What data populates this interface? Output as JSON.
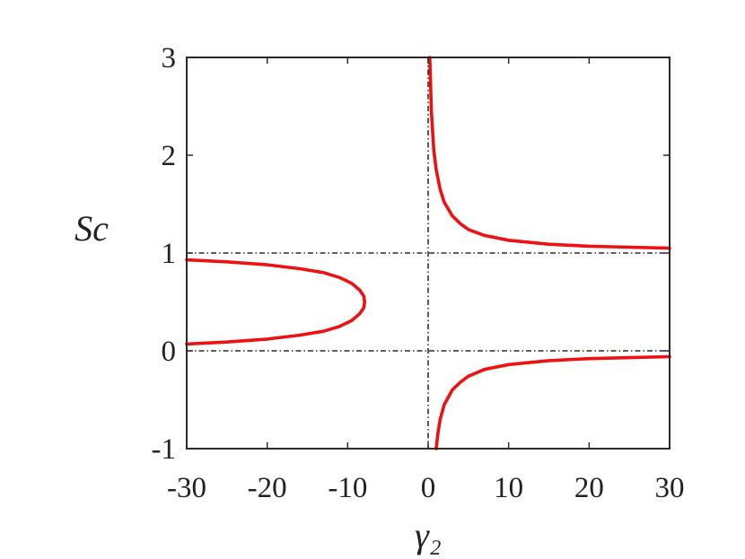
{
  "chart_data": {
    "type": "line",
    "xlabel": "γ₂",
    "ylabel": "Sc",
    "xlim": [
      -30,
      30
    ],
    "ylim": [
      -1,
      3
    ],
    "xticks": [
      -30,
      -20,
      -10,
      0,
      10,
      20,
      30
    ],
    "yticks": [
      -1,
      0,
      1,
      2,
      3
    ],
    "grid": false,
    "legend": "none",
    "reference_lines": {
      "horizontal": [
        0,
        1
      ],
      "vertical": [
        0
      ],
      "color": "#000000",
      "style": "dash-dot"
    },
    "curve_color": "#ee1111",
    "series": [
      {
        "values": [
          {
            "x": -30,
            "y": 0.07
          },
          {
            "x": -25,
            "y": 0.09
          },
          {
            "x": -20,
            "y": 0.12
          },
          {
            "x": -16,
            "y": 0.16
          },
          {
            "x": -13,
            "y": 0.2
          },
          {
            "x": -11,
            "y": 0.25
          },
          {
            "x": -9.5,
            "y": 0.31
          },
          {
            "x": -8.5,
            "y": 0.38
          },
          {
            "x": -8.0,
            "y": 0.44
          },
          {
            "x": -7.9,
            "y": 0.5
          },
          {
            "x": -8.0,
            "y": 0.56
          },
          {
            "x": -8.5,
            "y": 0.62
          },
          {
            "x": -9.5,
            "y": 0.69
          },
          {
            "x": -11,
            "y": 0.75
          },
          {
            "x": -13,
            "y": 0.8
          },
          {
            "x": -16,
            "y": 0.84
          },
          {
            "x": -20,
            "y": 0.88
          },
          {
            "x": -25,
            "y": 0.91
          },
          {
            "x": -30,
            "y": 0.93
          }
        ]
      },
      {
        "values": [
          {
            "x": 0.2,
            "y": 3.0
          },
          {
            "x": 0.4,
            "y": 2.45
          },
          {
            "x": 0.7,
            "y": 2.05
          },
          {
            "x": 1.0,
            "y": 1.85
          },
          {
            "x": 1.5,
            "y": 1.65
          },
          {
            "x": 2.0,
            "y": 1.52
          },
          {
            "x": 3.0,
            "y": 1.38
          },
          {
            "x": 4.0,
            "y": 1.3
          },
          {
            "x": 5.0,
            "y": 1.24
          },
          {
            "x": 7.0,
            "y": 1.18
          },
          {
            "x": 10,
            "y": 1.13
          },
          {
            "x": 15,
            "y": 1.09
          },
          {
            "x": 20,
            "y": 1.07
          },
          {
            "x": 25,
            "y": 1.06
          },
          {
            "x": 30,
            "y": 1.05
          }
        ]
      },
      {
        "values": [
          {
            "x": 1.0,
            "y": -1.0
          },
          {
            "x": 1.2,
            "y": -0.85
          },
          {
            "x": 1.5,
            "y": -0.7
          },
          {
            "x": 2.0,
            "y": -0.55
          },
          {
            "x": 3.0,
            "y": -0.4
          },
          {
            "x": 4.0,
            "y": -0.32
          },
          {
            "x": 5.0,
            "y": -0.26
          },
          {
            "x": 7.0,
            "y": -0.19
          },
          {
            "x": 10,
            "y": -0.14
          },
          {
            "x": 15,
            "y": -0.1
          },
          {
            "x": 20,
            "y": -0.08
          },
          {
            "x": 25,
            "y": -0.07
          },
          {
            "x": 30,
            "y": -0.06
          }
        ]
      }
    ]
  }
}
